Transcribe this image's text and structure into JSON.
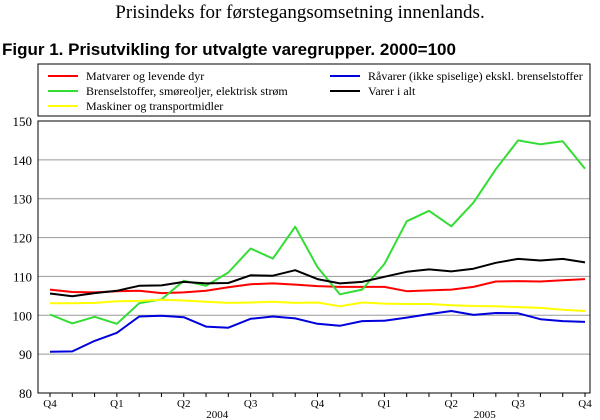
{
  "suptitle": "Prisindeks for førstegangsomsetning innenlands.",
  "chart_data": {
    "type": "line",
    "title": "Figur 1. Prisutvikling for utvalgte varegrupper. 2000=100",
    "xlabel": "",
    "ylabel": "",
    "ylim": [
      80,
      150
    ],
    "yticks": [
      80,
      90,
      100,
      110,
      120,
      130,
      140,
      150
    ],
    "grid": "horizontal",
    "legend_position": "top",
    "x_tick_labels": [
      {
        "label": "Q4",
        "index": 0
      },
      {
        "label": "Q1",
        "index": 3
      },
      {
        "label": "Q2",
        "index": 6
      },
      {
        "label": "Q3",
        "index": 9
      },
      {
        "label": "Q4",
        "index": 12
      },
      {
        "label": "Q1",
        "index": 15
      },
      {
        "label": "Q2",
        "index": 18
      },
      {
        "label": "Q3",
        "index": 21
      },
      {
        "label": "Q4",
        "index": 24
      }
    ],
    "year_labels": [
      {
        "label": "2004",
        "index": 7.5
      },
      {
        "label": "2005",
        "index": 19.5
      }
    ],
    "series": [
      {
        "name": "Matvarer og levende dyr",
        "color": "#ff0000",
        "values": [
          106.6,
          106.0,
          105.9,
          106.2,
          106.3,
          105.7,
          105.9,
          106.3,
          107.2,
          108.0,
          108.2,
          107.9,
          107.5,
          107.3,
          107.3,
          107.3,
          106.2,
          106.4,
          106.6,
          107.3,
          108.7,
          108.8,
          108.7,
          109.0,
          109.3
        ]
      },
      {
        "name": "Brenselstoffer, smøreoljer, elektrisk strøm",
        "color": "#33dd33",
        "values": [
          100.2,
          97.9,
          99.6,
          97.8,
          103.1,
          104.1,
          108.9,
          107.6,
          111.0,
          117.2,
          114.6,
          122.8,
          112.4,
          105.4,
          106.6,
          113.2,
          124.2,
          126.9,
          122.9,
          129.0,
          137.6,
          145.0,
          144.0,
          144.8,
          137.7
        ]
      },
      {
        "name": "Maskiner og transportmidler",
        "color": "#ffff00",
        "values": [
          103.1,
          103.1,
          103.2,
          103.6,
          103.7,
          104.0,
          103.8,
          103.5,
          103.2,
          103.3,
          103.5,
          103.2,
          103.3,
          102.3,
          103.3,
          103.0,
          102.9,
          102.9,
          102.6,
          102.4,
          102.3,
          102.1,
          101.9,
          101.4,
          101.1
        ]
      },
      {
        "name": "Råvarer (ikke spiselige) ekskl. brenselstoffer",
        "color": "#0000dd",
        "values": [
          90.6,
          90.7,
          93.4,
          95.5,
          99.7,
          99.9,
          99.5,
          97.1,
          96.8,
          99.1,
          99.7,
          99.2,
          97.8,
          97.3,
          98.5,
          98.6,
          99.4,
          100.3,
          101.1,
          100.1,
          100.6,
          100.5,
          99.0,
          98.5,
          98.3
        ]
      },
      {
        "name": "Varer i alt",
        "color": "#000000",
        "values": [
          105.6,
          104.9,
          105.7,
          106.3,
          107.6,
          107.7,
          108.6,
          108.2,
          108.3,
          110.3,
          110.2,
          111.6,
          109.3,
          108.2,
          108.6,
          109.9,
          111.2,
          111.8,
          111.3,
          112.0,
          113.5,
          114.5,
          114.1,
          114.5,
          113.6
        ]
      }
    ]
  }
}
